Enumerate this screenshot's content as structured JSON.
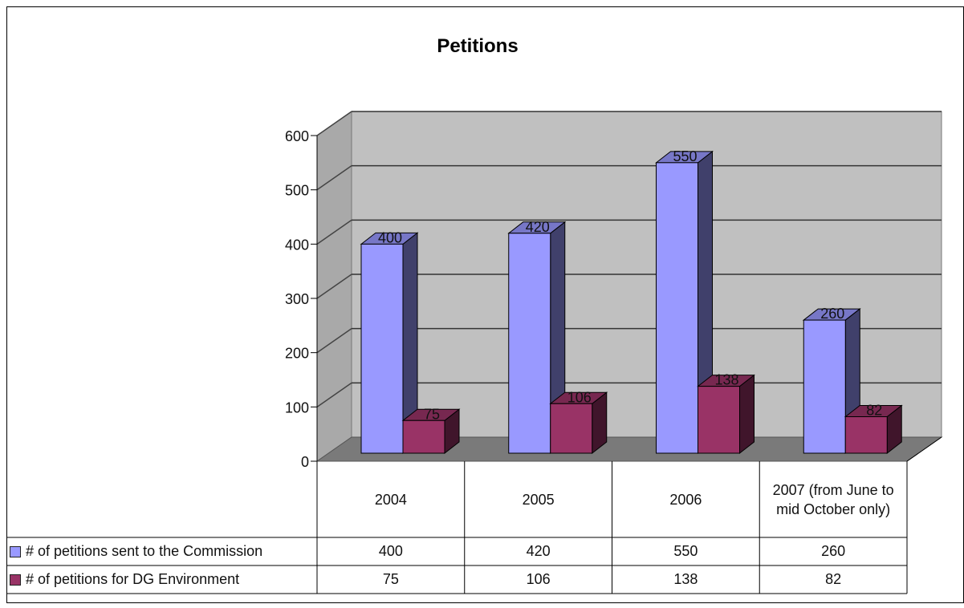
{
  "chart_data": {
    "type": "bar",
    "title": "Petitions",
    "categories": [
      "2004",
      "2005",
      "2006",
      "2007 (from June to mid October only)"
    ],
    "series": [
      {
        "name": "# of petitions sent to the Commission",
        "values": [
          400,
          420,
          550,
          260
        ],
        "color": "#9999ff"
      },
      {
        "name": "# of petitions  for DG Environment",
        "values": [
          75,
          106,
          138,
          82
        ],
        "color": "#993366"
      }
    ],
    "bar_labels": [
      [
        "400",
        "420",
        "550",
        "260"
      ],
      [
        "75",
        "106",
        "138",
        "82"
      ]
    ],
    "ylim": [
      0,
      600
    ],
    "yticks": [
      "0",
      "100",
      "200",
      "300",
      "400",
      "500",
      "600"
    ],
    "grid": true,
    "legend": "data-table",
    "xlabel": "",
    "ylabel": ""
  }
}
